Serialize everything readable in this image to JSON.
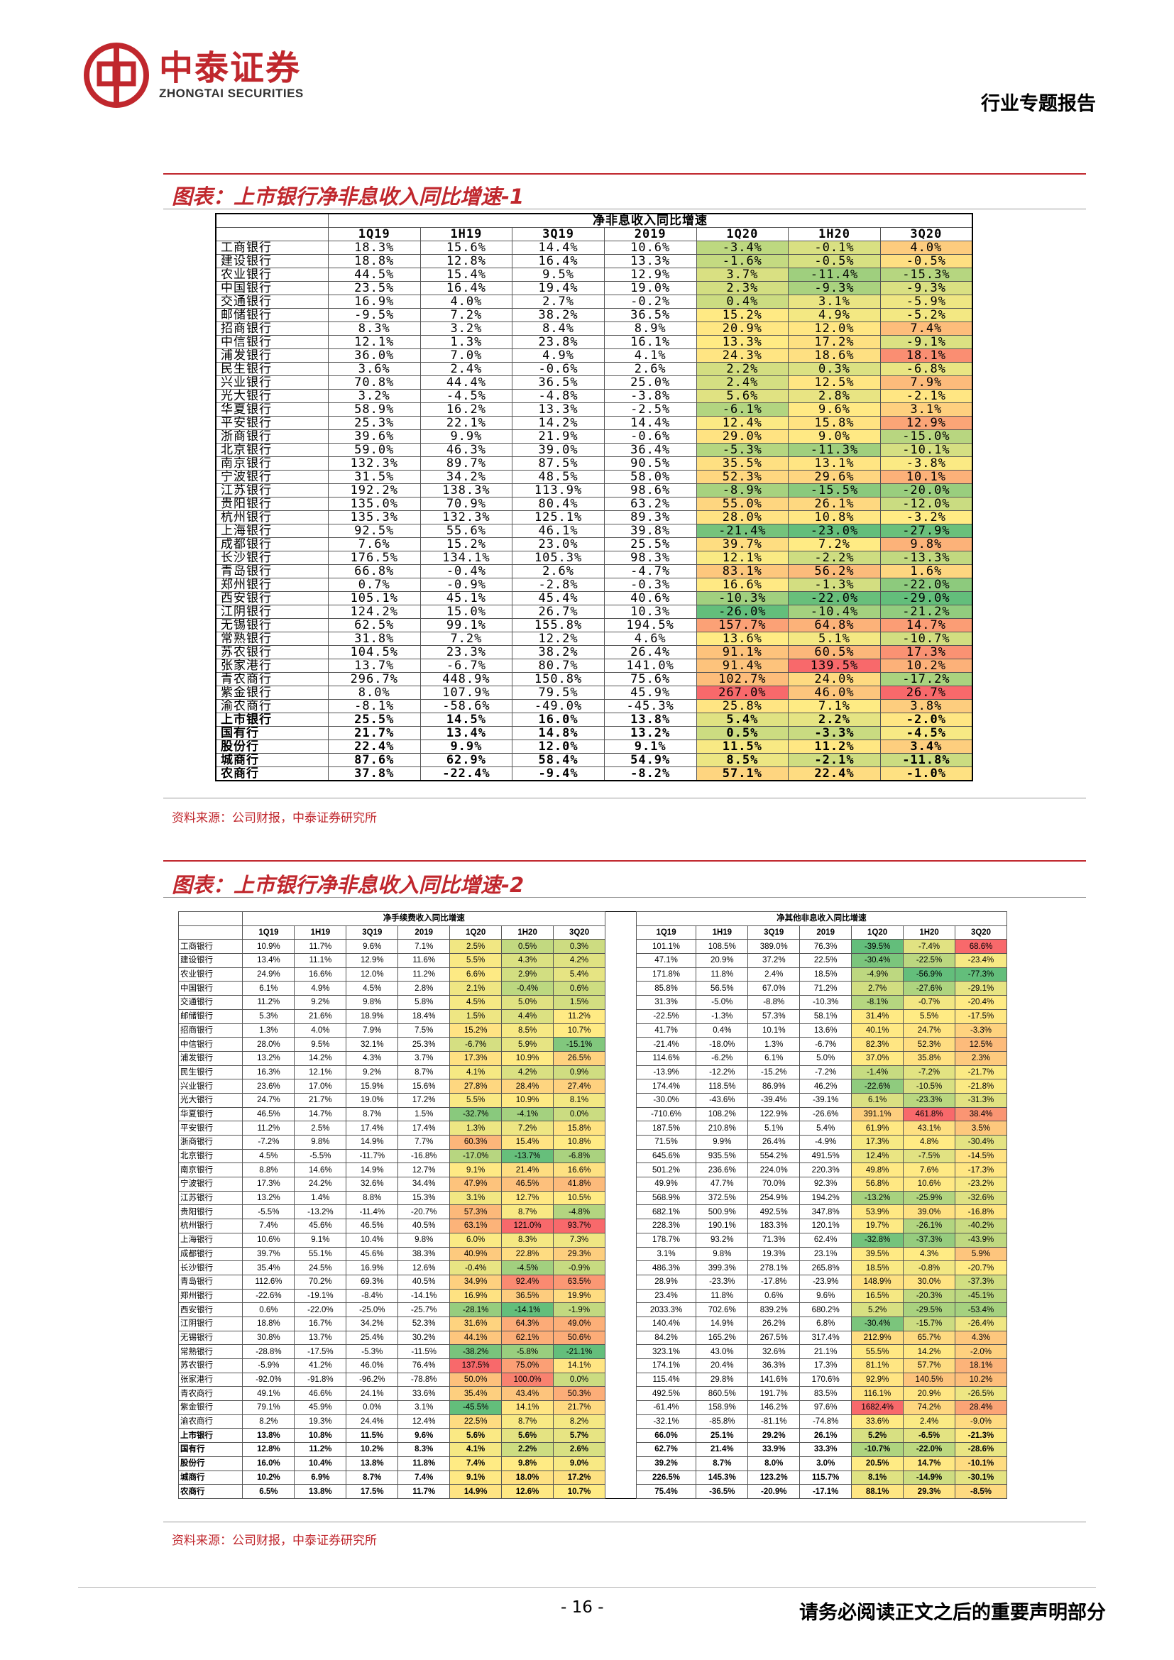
{
  "header": {
    "logo_cn": "中泰证券",
    "logo_en": "ZHONGTAI SECURITIES",
    "report_type": "行业专题报告"
  },
  "figure1": {
    "title": "图表：上市银行净非息收入同比增速-1",
    "table_title": "净非息收入同比增速",
    "columns": [
      "1Q19",
      "1H19",
      "3Q19",
      "2019",
      "1Q20",
      "1H20",
      "3Q20"
    ],
    "rows": [
      [
        "工商银行",
        "18.3%",
        "15.6%",
        "14.4%",
        "10.6%",
        "-3.4%",
        "-0.1%",
        "4.0%"
      ],
      [
        "建设银行",
        "18.8%",
        "12.8%",
        "16.4%",
        "13.3%",
        "-1.6%",
        "-0.5%",
        "-0.5%"
      ],
      [
        "农业银行",
        "44.5%",
        "15.4%",
        "9.5%",
        "12.9%",
        "3.7%",
        "-11.4%",
        "-15.3%"
      ],
      [
        "中国银行",
        "23.5%",
        "16.4%",
        "19.4%",
        "19.0%",
        "2.3%",
        "-9.3%",
        "-9.3%"
      ],
      [
        "交通银行",
        "16.9%",
        "4.0%",
        "2.7%",
        "-0.2%",
        "0.4%",
        "3.1%",
        "-5.9%"
      ],
      [
        "邮储银行",
        "-9.5%",
        "7.2%",
        "38.2%",
        "36.5%",
        "15.2%",
        "4.9%",
        "-5.2%"
      ],
      [
        "招商银行",
        "8.3%",
        "3.2%",
        "8.4%",
        "8.9%",
        "20.9%",
        "12.0%",
        "7.4%"
      ],
      [
        "中信银行",
        "12.1%",
        "1.3%",
        "23.8%",
        "16.1%",
        "13.3%",
        "17.2%",
        "-9.1%"
      ],
      [
        "浦发银行",
        "36.0%",
        "7.0%",
        "4.9%",
        "4.1%",
        "24.3%",
        "18.6%",
        "18.1%"
      ],
      [
        "民生银行",
        "3.6%",
        "2.4%",
        "-0.6%",
        "2.6%",
        "2.2%",
        "0.3%",
        "-6.8%"
      ],
      [
        "兴业银行",
        "70.8%",
        "44.4%",
        "36.5%",
        "25.0%",
        "2.4%",
        "12.5%",
        "7.9%"
      ],
      [
        "光大银行",
        "3.2%",
        "-4.5%",
        "-4.8%",
        "-3.8%",
        "5.6%",
        "2.8%",
        "-2.1%"
      ],
      [
        "华夏银行",
        "58.9%",
        "16.2%",
        "13.3%",
        "-2.5%",
        "-6.1%",
        "9.6%",
        "3.1%"
      ],
      [
        "平安银行",
        "25.3%",
        "22.1%",
        "14.2%",
        "14.4%",
        "12.4%",
        "15.8%",
        "12.9%"
      ],
      [
        "浙商银行",
        "39.6%",
        "9.9%",
        "21.9%",
        "-0.6%",
        "29.0%",
        "9.0%",
        "-15.0%"
      ],
      [
        "北京银行",
        "59.0%",
        "46.3%",
        "39.0%",
        "36.4%",
        "-5.3%",
        "-11.3%",
        "-10.1%"
      ],
      [
        "南京银行",
        "132.3%",
        "89.7%",
        "87.5%",
        "90.5%",
        "35.5%",
        "13.1%",
        "-3.8%"
      ],
      [
        "宁波银行",
        "31.5%",
        "34.2%",
        "48.5%",
        "58.0%",
        "52.3%",
        "29.6%",
        "10.1%"
      ],
      [
        "江苏银行",
        "192.2%",
        "138.3%",
        "113.9%",
        "98.6%",
        "-8.9%",
        "-15.5%",
        "-20.0%"
      ],
      [
        "贵阳银行",
        "135.0%",
        "70.9%",
        "80.4%",
        "63.2%",
        "55.0%",
        "26.1%",
        "-12.0%"
      ],
      [
        "杭州银行",
        "135.3%",
        "132.3%",
        "125.1%",
        "89.3%",
        "28.0%",
        "10.8%",
        "-3.2%"
      ],
      [
        "上海银行",
        "92.5%",
        "55.6%",
        "46.1%",
        "39.8%",
        "-21.4%",
        "-23.0%",
        "-27.9%"
      ],
      [
        "成都银行",
        "7.6%",
        "15.2%",
        "23.0%",
        "25.5%",
        "39.7%",
        "7.2%",
        "9.8%"
      ],
      [
        "长沙银行",
        "176.5%",
        "134.1%",
        "105.3%",
        "98.3%",
        "12.1%",
        "-2.2%",
        "-13.3%"
      ],
      [
        "青岛银行",
        "66.8%",
        "-0.4%",
        "2.6%",
        "-4.7%",
        "83.1%",
        "56.2%",
        "1.6%"
      ],
      [
        "郑州银行",
        "0.7%",
        "-0.9%",
        "-2.8%",
        "-0.3%",
        "16.6%",
        "-1.3%",
        "-22.0%"
      ],
      [
        "西安银行",
        "105.1%",
        "45.1%",
        "45.4%",
        "40.6%",
        "-10.3%",
        "-22.0%",
        "-29.0%"
      ],
      [
        "江阴银行",
        "124.2%",
        "15.0%",
        "26.7%",
        "10.3%",
        "-26.0%",
        "-10.4%",
        "-21.2%"
      ],
      [
        "无锡银行",
        "62.5%",
        "99.1%",
        "155.8%",
        "194.5%",
        "157.7%",
        "64.8%",
        "14.7%"
      ],
      [
        "常熟银行",
        "31.8%",
        "7.2%",
        "12.2%",
        "4.6%",
        "13.6%",
        "5.1%",
        "-10.7%"
      ],
      [
        "苏农银行",
        "104.5%",
        "23.3%",
        "38.2%",
        "26.4%",
        "91.1%",
        "60.5%",
        "17.3%"
      ],
      [
        "张家港行",
        "13.7%",
        "-6.7%",
        "80.7%",
        "141.0%",
        "91.4%",
        "139.5%",
        "10.2%"
      ],
      [
        "青农商行",
        "296.7%",
        "448.9%",
        "150.8%",
        "75.6%",
        "102.7%",
        "24.0%",
        "-17.2%"
      ],
      [
        "紫金银行",
        "8.0%",
        "107.9%",
        "79.5%",
        "45.9%",
        "267.0%",
        "46.0%",
        "26.7%"
      ],
      [
        "渝农商行",
        "-8.1%",
        "-58.6%",
        "-49.0%",
        "-45.3%",
        "25.8%",
        "7.1%",
        "3.8%"
      ]
    ],
    "group_rows": [
      [
        "上市银行",
        "25.5%",
        "14.5%",
        "16.0%",
        "13.8%",
        "5.4%",
        "2.2%",
        "-2.0%"
      ],
      [
        "国有行",
        "21.7%",
        "13.4%",
        "14.8%",
        "13.2%",
        "0.5%",
        "-3.3%",
        "-4.5%"
      ],
      [
        "股份行",
        "22.4%",
        "9.9%",
        "12.0%",
        "9.1%",
        "11.5%",
        "11.2%",
        "3.4%"
      ],
      [
        "城商行",
        "87.6%",
        "62.9%",
        "58.4%",
        "54.9%",
        "8.5%",
        "-2.1%",
        "-11.8%"
      ],
      [
        "农商行",
        "37.8%",
        "-22.4%",
        "-9.4%",
        "-8.2%",
        "57.1%",
        "22.4%",
        "-1.0%"
      ]
    ],
    "source": "资料来源：公司财报，中泰证券研究所"
  },
  "figure2": {
    "title": "图表：上市银行净非息收入同比增速-2",
    "left_table_title": "净手续费收入同比增速",
    "right_table_title": "净其他非息收入同比增速",
    "columns": [
      "1Q19",
      "1H19",
      "3Q19",
      "2019",
      "1Q20",
      "1H20",
      "3Q20"
    ],
    "rows": [
      [
        "工商银行",
        "10.9%",
        "11.7%",
        "9.6%",
        "7.1%",
        "2.5%",
        "0.5%",
        "0.3%",
        "101.1%",
        "108.5%",
        "389.0%",
        "76.3%",
        "-39.5%",
        "-7.4%",
        "68.6%"
      ],
      [
        "建设银行",
        "13.4%",
        "11.1%",
        "12.9%",
        "11.6%",
        "5.5%",
        "4.3%",
        "4.2%",
        "47.1%",
        "20.9%",
        "37.2%",
        "22.5%",
        "-30.4%",
        "-22.5%",
        "-23.4%"
      ],
      [
        "农业银行",
        "24.9%",
        "16.6%",
        "12.0%",
        "11.2%",
        "6.6%",
        "2.9%",
        "5.4%",
        "171.8%",
        "11.8%",
        "2.4%",
        "18.5%",
        "-4.9%",
        "-56.9%",
        "-77.3%"
      ],
      [
        "中国银行",
        "6.1%",
        "4.9%",
        "4.5%",
        "2.8%",
        "2.1%",
        "-0.4%",
        "0.6%",
        "85.8%",
        "56.5%",
        "67.0%",
        "71.2%",
        "2.7%",
        "-27.6%",
        "-29.1%"
      ],
      [
        "交通银行",
        "11.2%",
        "9.2%",
        "9.8%",
        "5.8%",
        "4.5%",
        "5.0%",
        "1.5%",
        "31.3%",
        "-5.0%",
        "-8.8%",
        "-10.3%",
        "-8.1%",
        "-0.7%",
        "-20.4%"
      ],
      [
        "邮储银行",
        "5.3%",
        "21.6%",
        "18.9%",
        "18.4%",
        "1.5%",
        "4.4%",
        "11.2%",
        "-22.5%",
        "-1.3%",
        "57.3%",
        "58.1%",
        "31.4%",
        "5.5%",
        "-17.5%"
      ],
      [
        "招商银行",
        "1.3%",
        "4.0%",
        "7.9%",
        "7.5%",
        "15.2%",
        "8.5%",
        "10.7%",
        "41.7%",
        "0.4%",
        "10.1%",
        "13.6%",
        "40.1%",
        "24.7%",
        "-3.3%"
      ],
      [
        "中信银行",
        "28.0%",
        "9.5%",
        "32.1%",
        "25.3%",
        "-6.7%",
        "5.9%",
        "-15.1%",
        "-21.4%",
        "-18.0%",
        "1.3%",
        "-6.7%",
        "82.3%",
        "52.3%",
        "12.5%"
      ],
      [
        "浦发银行",
        "13.2%",
        "14.2%",
        "4.3%",
        "3.7%",
        "17.3%",
        "10.9%",
        "26.5%",
        "114.6%",
        "-6.2%",
        "6.1%",
        "5.0%",
        "37.0%",
        "35.8%",
        "2.3%"
      ],
      [
        "民生银行",
        "16.3%",
        "12.1%",
        "9.2%",
        "8.7%",
        "4.1%",
        "4.2%",
        "0.9%",
        "-13.9%",
        "-12.2%",
        "-15.2%",
        "-7.2%",
        "-1.4%",
        "-7.2%",
        "-21.7%"
      ],
      [
        "兴业银行",
        "23.6%",
        "17.0%",
        "15.9%",
        "15.6%",
        "27.8%",
        "28.4%",
        "27.4%",
        "174.4%",
        "118.5%",
        "86.9%",
        "46.2%",
        "-22.6%",
        "-10.5%",
        "-21.8%"
      ],
      [
        "光大银行",
        "24.7%",
        "21.7%",
        "19.0%",
        "17.2%",
        "5.5%",
        "10.9%",
        "8.1%",
        "-30.0%",
        "-43.6%",
        "-39.4%",
        "-39.1%",
        "6.1%",
        "-23.3%",
        "-31.3%"
      ],
      [
        "华夏银行",
        "46.5%",
        "14.7%",
        "8.7%",
        "1.5%",
        "-32.7%",
        "-4.1%",
        "0.0%",
        "-710.6%",
        "108.2%",
        "122.9%",
        "-26.6%",
        "391.1%",
        "461.8%",
        "38.4%"
      ],
      [
        "平安银行",
        "11.2%",
        "2.5%",
        "17.4%",
        "17.4%",
        "1.3%",
        "7.2%",
        "15.8%",
        "187.5%",
        "210.8%",
        "5.1%",
        "5.4%",
        "61.9%",
        "43.1%",
        "3.5%"
      ],
      [
        "浙商银行",
        "-7.2%",
        "9.8%",
        "14.9%",
        "7.7%",
        "60.3%",
        "15.4%",
        "10.8%",
        "71.5%",
        "9.9%",
        "26.4%",
        "-4.9%",
        "17.3%",
        "4.8%",
        "-30.4%"
      ],
      [
        "北京银行",
        "4.5%",
        "-5.5%",
        "-11.7%",
        "-16.8%",
        "-17.0%",
        "-13.7%",
        "-6.8%",
        "645.6%",
        "935.5%",
        "554.2%",
        "491.5%",
        "12.4%",
        "-7.5%",
        "-14.5%"
      ],
      [
        "南京银行",
        "8.8%",
        "14.6%",
        "14.9%",
        "12.7%",
        "9.1%",
        "21.4%",
        "16.6%",
        "501.2%",
        "236.6%",
        "224.0%",
        "220.3%",
        "49.8%",
        "7.6%",
        "-17.3%"
      ],
      [
        "宁波银行",
        "17.3%",
        "24.2%",
        "32.6%",
        "34.4%",
        "47.9%",
        "46.5%",
        "41.8%",
        "49.9%",
        "47.7%",
        "70.0%",
        "92.3%",
        "56.8%",
        "10.6%",
        "-23.2%"
      ],
      [
        "江苏银行",
        "13.2%",
        "1.4%",
        "8.8%",
        "15.3%",
        "3.1%",
        "12.7%",
        "10.5%",
        "568.9%",
        "372.5%",
        "254.9%",
        "194.2%",
        "-13.2%",
        "-25.9%",
        "-32.6%"
      ],
      [
        "贵阳银行",
        "-5.5%",
        "-13.2%",
        "-11.4%",
        "-20.7%",
        "57.3%",
        "8.7%",
        "-4.8%",
        "682.1%",
        "500.9%",
        "492.5%",
        "347.8%",
        "53.9%",
        "39.0%",
        "-16.8%"
      ],
      [
        "杭州银行",
        "7.4%",
        "45.6%",
        "46.5%",
        "40.5%",
        "63.1%",
        "121.0%",
        "93.7%",
        "228.3%",
        "190.1%",
        "183.3%",
        "120.1%",
        "19.7%",
        "-26.1%",
        "-40.2%"
      ],
      [
        "上海银行",
        "10.6%",
        "9.1%",
        "10.4%",
        "9.8%",
        "6.0%",
        "8.3%",
        "7.3%",
        "178.7%",
        "93.2%",
        "71.3%",
        "62.4%",
        "-32.8%",
        "-37.3%",
        "-43.9%"
      ],
      [
        "成都银行",
        "39.7%",
        "55.1%",
        "45.6%",
        "38.3%",
        "40.9%",
        "22.8%",
        "29.3%",
        "3.1%",
        "9.8%",
        "19.3%",
        "23.1%",
        "39.5%",
        "4.3%",
        "5.9%"
      ],
      [
        "长沙银行",
        "35.4%",
        "24.5%",
        "16.9%",
        "12.6%",
        "-0.4%",
        "-4.5%",
        "-0.9%",
        "486.3%",
        "399.3%",
        "278.1%",
        "265.8%",
        "18.5%",
        "-0.8%",
        "-20.7%"
      ],
      [
        "青岛银行",
        "112.6%",
        "70.2%",
        "69.3%",
        "40.5%",
        "34.9%",
        "92.4%",
        "63.5%",
        "28.9%",
        "-23.3%",
        "-17.8%",
        "-23.9%",
        "148.9%",
        "30.0%",
        "-37.3%"
      ],
      [
        "郑州银行",
        "-22.6%",
        "-19.1%",
        "-8.4%",
        "-14.1%",
        "16.9%",
        "36.5%",
        "19.9%",
        "23.4%",
        "11.8%",
        "0.6%",
        "9.6%",
        "16.5%",
        "-20.3%",
        "-45.1%"
      ],
      [
        "西安银行",
        "0.6%",
        "-22.0%",
        "-25.0%",
        "-25.7%",
        "-28.1%",
        "-14.1%",
        "-1.9%",
        "2033.3%",
        "702.6%",
        "839.2%",
        "680.2%",
        "5.2%",
        "-29.5%",
        "-53.4%"
      ],
      [
        "江阴银行",
        "18.8%",
        "16.7%",
        "34.2%",
        "52.3%",
        "31.6%",
        "64.3%",
        "49.0%",
        "140.4%",
        "14.9%",
        "26.2%",
        "6.8%",
        "-30.4%",
        "-15.7%",
        "-26.4%"
      ],
      [
        "无锡银行",
        "30.8%",
        "13.7%",
        "25.4%",
        "30.2%",
        "44.1%",
        "62.1%",
        "50.6%",
        "84.2%",
        "165.2%",
        "267.5%",
        "317.4%",
        "212.9%",
        "65.7%",
        "4.3%"
      ],
      [
        "常熟银行",
        "-28.8%",
        "-17.5%",
        "-5.3%",
        "-11.5%",
        "-38.2%",
        "-5.8%",
        "-21.1%",
        "323.1%",
        "43.0%",
        "32.6%",
        "21.1%",
        "55.5%",
        "14.2%",
        "-2.0%"
      ],
      [
        "苏农银行",
        "-5.9%",
        "41.2%",
        "46.0%",
        "76.4%",
        "137.5%",
        "75.0%",
        "14.1%",
        "174.1%",
        "20.4%",
        "36.3%",
        "17.3%",
        "81.1%",
        "57.7%",
        "18.1%"
      ],
      [
        "张家港行",
        "-92.0%",
        "-91.8%",
        "-96.2%",
        "-78.8%",
        "50.0%",
        "100.0%",
        "0.0%",
        "115.4%",
        "29.8%",
        "141.6%",
        "170.6%",
        "92.9%",
        "140.5%",
        "10.2%"
      ],
      [
        "青农商行",
        "49.1%",
        "46.6%",
        "24.1%",
        "33.6%",
        "35.4%",
        "43.4%",
        "50.3%",
        "492.5%",
        "860.5%",
        "191.7%",
        "83.5%",
        "116.1%",
        "20.9%",
        "-26.5%"
      ],
      [
        "紫金银行",
        "79.1%",
        "45.9%",
        "0.0%",
        "3.1%",
        "-45.5%",
        "14.1%",
        "21.7%",
        "-61.4%",
        "158.9%",
        "146.2%",
        "97.6%",
        "1682.4%",
        "74.2%",
        "28.4%"
      ],
      [
        "渝农商行",
        "8.2%",
        "19.3%",
        "24.4%",
        "12.4%",
        "22.5%",
        "8.7%",
        "8.2%",
        "-32.1%",
        "-85.8%",
        "-81.1%",
        "-74.8%",
        "33.6%",
        "2.4%",
        "-9.0%"
      ]
    ],
    "group_rows": [
      [
        "上市银行",
        "13.8%",
        "10.8%",
        "11.5%",
        "9.6%",
        "5.6%",
        "5.6%",
        "5.7%",
        "66.0%",
        "25.1%",
        "29.2%",
        "26.1%",
        "5.2%",
        "-6.5%",
        "-21.3%"
      ],
      [
        "国有行",
        "12.8%",
        "11.2%",
        "10.2%",
        "8.3%",
        "4.1%",
        "2.2%",
        "2.6%",
        "62.7%",
        "21.4%",
        "33.9%",
        "33.3%",
        "-10.7%",
        "-22.0%",
        "-28.6%"
      ],
      [
        "股份行",
        "16.0%",
        "10.4%",
        "13.8%",
        "11.8%",
        "7.4%",
        "9.8%",
        "9.0%",
        "39.2%",
        "8.7%",
        "8.0%",
        "3.0%",
        "20.5%",
        "14.7%",
        "-10.1%"
      ],
      [
        "城商行",
        "10.2%",
        "6.9%",
        "8.7%",
        "7.4%",
        "9.1%",
        "18.0%",
        "17.2%",
        "226.5%",
        "145.3%",
        "123.2%",
        "115.7%",
        "8.1%",
        "-14.9%",
        "-30.1%"
      ],
      [
        "农商行",
        "6.5%",
        "13.8%",
        "17.5%",
        "11.7%",
        "14.9%",
        "12.6%",
        "10.7%",
        "75.4%",
        "-36.5%",
        "-20.9%",
        "-17.1%",
        "88.1%",
        "29.3%",
        "-8.5%"
      ]
    ],
    "source": "资料来源：公司财报，中泰证券研究所"
  },
  "footer": {
    "page_number": "- 16 -",
    "disclaimer": "请务必阅读正文之后的重要声明部分"
  },
  "colors": {
    "brand_red": "#c0272d",
    "scale_low": "#63be7b",
    "scale_mid": "#ffeb84",
    "scale_high": "#f8696b"
  }
}
